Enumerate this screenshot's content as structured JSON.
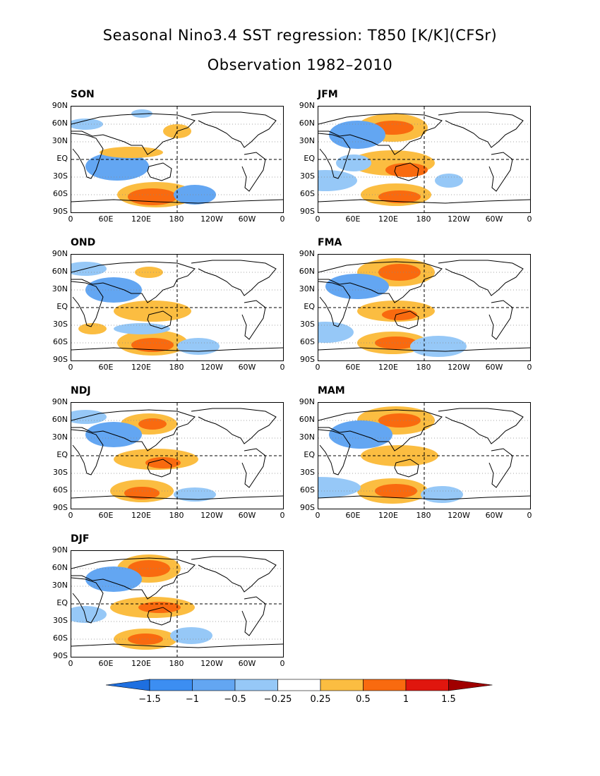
{
  "title": "Seasonal Nino3.4 SST regression: T850 [K/K](CFSr)",
  "subtitle": "Observation 1982–2010",
  "y_ticks": [
    "90N",
    "60N",
    "30N",
    "EQ",
    "30S",
    "60S",
    "90S"
  ],
  "x_ticks": [
    "0",
    "60E",
    "120E",
    "180",
    "120W",
    "60W",
    "0"
  ],
  "panels": [
    {
      "label": "SON"
    },
    {
      "label": "JFM"
    },
    {
      "label": "OND"
    },
    {
      "label": "FMA"
    },
    {
      "label": "NDJ"
    },
    {
      "label": "MAM"
    },
    {
      "label": "DJF"
    }
  ],
  "colorbar": {
    "labels": [
      "−1.5",
      "−1",
      "−0.5",
      "−0.25",
      "0.25",
      "0.5",
      "1",
      "1.5"
    ],
    "colors": [
      "#1e6fe0",
      "#3c8ef2",
      "#63a6f2",
      "#96c8f7",
      "#ffffff",
      "#fbbd41",
      "#f96a0f",
      "#e0160e",
      "#a00000"
    ]
  },
  "colors": {
    "neg_strong": "#3c8ef2",
    "neg_mid": "#63a6f2",
    "neg_light": "#96c8f7",
    "pos_light": "#fbbd41",
    "pos_mid": "#f96a0f",
    "pos_strong": "#e0160e"
  }
}
